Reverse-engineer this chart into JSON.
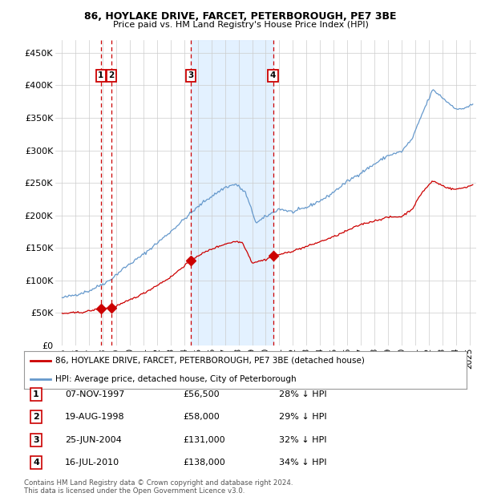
{
  "title1": "86, HOYLAKE DRIVE, FARCET, PETERBOROUGH, PE7 3BE",
  "title2": "Price paid vs. HM Land Registry's House Price Index (HPI)",
  "ylabel_ticks": [
    "£0",
    "£50K",
    "£100K",
    "£150K",
    "£200K",
    "£250K",
    "£300K",
    "£350K",
    "£400K",
    "£450K"
  ],
  "ytick_vals": [
    0,
    50000,
    100000,
    150000,
    200000,
    250000,
    300000,
    350000,
    400000,
    450000
  ],
  "xlim": [
    1994.5,
    2025.5
  ],
  "ylim": [
    0,
    470000
  ],
  "sale_dates": [
    1997.85,
    1998.63,
    2004.48,
    2010.54
  ],
  "sale_prices": [
    56500,
    58000,
    131000,
    138000
  ],
  "sale_labels": [
    "1",
    "2",
    "3",
    "4"
  ],
  "legend_red": "86, HOYLAKE DRIVE, FARCET, PETERBOROUGH, PE7 3BE (detached house)",
  "legend_blue": "HPI: Average price, detached house, City of Peterborough",
  "table_rows": [
    [
      "1",
      "07-NOV-1997",
      "£56,500",
      "28% ↓ HPI"
    ],
    [
      "2",
      "19-AUG-1998",
      "£58,000",
      "29% ↓ HPI"
    ],
    [
      "3",
      "25-JUN-2004",
      "£131,000",
      "32% ↓ HPI"
    ],
    [
      "4",
      "16-JUL-2010",
      "£138,000",
      "34% ↓ HPI"
    ]
  ],
  "footnote1": "Contains HM Land Registry data © Crown copyright and database right 2024.",
  "footnote2": "This data is licensed under the Open Government Licence v3.0.",
  "red_color": "#cc0000",
  "blue_color": "#6699cc",
  "blue_fill": "#ddeeff",
  "grid_color": "#cccccc",
  "background_color": "#ffffff"
}
